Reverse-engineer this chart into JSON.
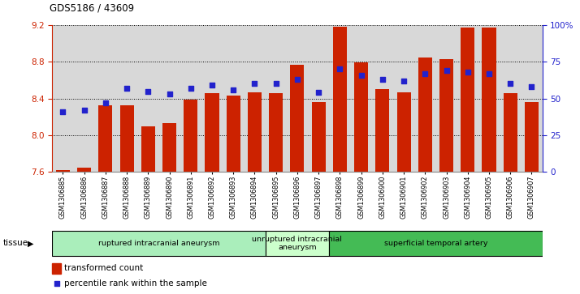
{
  "title": "GDS5186 / 43609",
  "samples": [
    "GSM1306885",
    "GSM1306886",
    "GSM1306887",
    "GSM1306888",
    "GSM1306889",
    "GSM1306890",
    "GSM1306891",
    "GSM1306892",
    "GSM1306893",
    "GSM1306894",
    "GSM1306895",
    "GSM1306896",
    "GSM1306897",
    "GSM1306898",
    "GSM1306899",
    "GSM1306900",
    "GSM1306901",
    "GSM1306902",
    "GSM1306903",
    "GSM1306904",
    "GSM1306905",
    "GSM1306906",
    "GSM1306907"
  ],
  "bar_values": [
    7.62,
    7.65,
    8.33,
    8.33,
    8.1,
    8.13,
    8.39,
    8.46,
    8.43,
    8.47,
    8.46,
    8.77,
    8.36,
    9.18,
    8.79,
    8.5,
    8.47,
    8.85,
    8.83,
    9.17,
    9.17,
    8.46,
    8.36
  ],
  "percentile_values": [
    41,
    42,
    47,
    57,
    55,
    53,
    57,
    59,
    56,
    60,
    60,
    63,
    54,
    70,
    66,
    63,
    62,
    67,
    69,
    68,
    67,
    60,
    58
  ],
  "groups": [
    {
      "label": "ruptured intracranial aneurysm",
      "start": 0,
      "end": 10,
      "color": "#aaeebb"
    },
    {
      "label": "unruptured intracranial\naneurysm",
      "start": 10,
      "end": 13,
      "color": "#ccffcc"
    },
    {
      "label": "superficial temporal artery",
      "start": 13,
      "end": 23,
      "color": "#44bb55"
    }
  ],
  "ylim_left": [
    7.6,
    9.2
  ],
  "ylim_right": [
    0,
    100
  ],
  "yticks_left": [
    7.6,
    8.0,
    8.4,
    8.8,
    9.2
  ],
  "yticks_right": [
    0,
    25,
    50,
    75,
    100
  ],
  "bar_color": "#cc2200",
  "dot_color": "#2222cc",
  "plot_bg_color": "#d8d8d8",
  "legend_bar_label": "transformed count",
  "legend_dot_label": "percentile rank within the sample",
  "tissue_label": "tissue",
  "left_axis_color": "#cc2200",
  "right_axis_color": "#2222cc"
}
